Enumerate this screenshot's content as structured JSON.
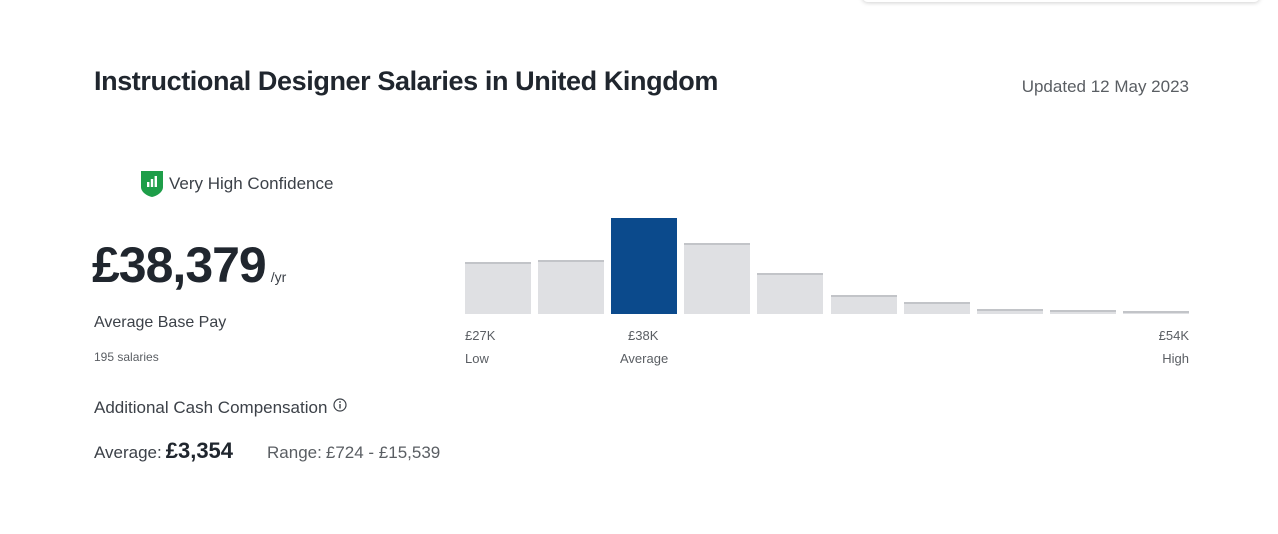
{
  "header": {
    "title": "Instructional Designer Salaries in United Kingdom",
    "updated": "Updated 12 May 2023"
  },
  "confidence": {
    "label": "Very High Confidence",
    "icon": "shield-chart-icon",
    "color": "#1e9e49"
  },
  "base_pay": {
    "amount": "£38,379",
    "unit": "/yr",
    "label": "Average Base Pay",
    "count": "195 salaries"
  },
  "additional_comp": {
    "label": "Additional Cash Compensation",
    "info_icon": "info-icon",
    "average_label": "Average:",
    "average_value": "£3,354",
    "range_label": "Range:",
    "range_value": "£724 - £15,539"
  },
  "chart_data": {
    "type": "bar",
    "categories": [
      "1",
      "2",
      "3",
      "4",
      "5",
      "6",
      "7",
      "8",
      "9",
      "10"
    ],
    "values": [
      54,
      56,
      100,
      74,
      43,
      20,
      12,
      5,
      4,
      3
    ],
    "highlight_index": 2,
    "highlight_color": "#0b4a8c",
    "bar_color": "#dfe0e3",
    "ylim": [
      0,
      100
    ],
    "axis": {
      "low": {
        "value": "£27K",
        "label": "Low"
      },
      "average": {
        "value": "£38K",
        "label": "Average"
      },
      "high": {
        "value": "£54K",
        "label": "High"
      }
    }
  }
}
